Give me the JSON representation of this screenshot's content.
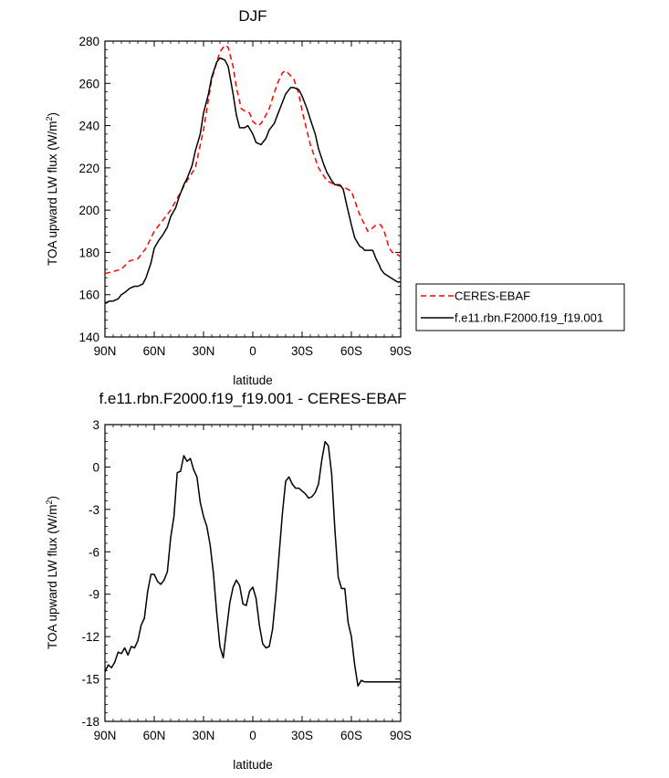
{
  "chart_data": [
    {
      "type": "line",
      "title": "DJF",
      "xlabel": "latitude",
      "ylabel": "TOA upward LW flux (W/m",
      "ylabel_sup": "2",
      "ylabel_close": ")",
      "xlim": [
        -90,
        90
      ],
      "ylim": [
        140,
        280
      ],
      "xticks": [
        -90,
        -60,
        -30,
        0,
        30,
        60,
        90
      ],
      "xtick_labels": [
        "90N",
        "60N",
        "30N",
        "0",
        "30S",
        "60S",
        "90S"
      ],
      "yticks": [
        140,
        160,
        180,
        200,
        220,
        240,
        260,
        280
      ],
      "ytick_labels": [
        "140",
        "160",
        "180",
        "200",
        "220",
        "240",
        "260",
        "280"
      ],
      "legend": [
        "CERES-EBAF",
        "f.e11.rbn.F2000.f19_f19.001"
      ],
      "series": [
        {
          "name": "CERES-EBAF",
          "color": "#ff0000",
          "dash": true,
          "x": [
            -90,
            -85,
            -80,
            -75,
            -70,
            -65,
            -60,
            -55,
            -50,
            -45,
            -40,
            -35,
            -30,
            -25,
            -20,
            -17,
            -15,
            -12,
            -10,
            -7,
            -5,
            -2,
            0,
            3,
            5,
            8,
            10,
            12,
            15,
            18,
            20,
            25,
            28,
            30,
            35,
            40,
            45,
            50,
            55,
            60,
            65,
            70,
            72,
            75,
            78,
            80,
            83,
            85,
            88,
            90
          ],
          "values": [
            170,
            171,
            172,
            176,
            177,
            182,
            190,
            195,
            200,
            207,
            214,
            220,
            238,
            262,
            275,
            278,
            277,
            268,
            258,
            248,
            247,
            246,
            242,
            240,
            241,
            245,
            248,
            253,
            260,
            265,
            266,
            262,
            255,
            247,
            231,
            220,
            214,
            212,
            211,
            209,
            198,
            190,
            191,
            193,
            193,
            190,
            182,
            180,
            179,
            178
          ]
        },
        {
          "name": "f.e11.rbn.F2000.f19_f19.001",
          "color": "#000000",
          "dash": false,
          "x": [
            -90,
            -87,
            -85,
            -82,
            -80,
            -78,
            -75,
            -72,
            -70,
            -67,
            -65,
            -62,
            -60,
            -57,
            -55,
            -52,
            -50,
            -47,
            -45,
            -42,
            -40,
            -37,
            -35,
            -32,
            -30,
            -27,
            -25,
            -22,
            -20,
            -17,
            -15,
            -12,
            -10,
            -8,
            -5,
            -3,
            0,
            2,
            5,
            8,
            10,
            13,
            15,
            18,
            20,
            23,
            25,
            28,
            30,
            33,
            35,
            38,
            40,
            43,
            45,
            48,
            50,
            53,
            55,
            57,
            60,
            62,
            65,
            67,
            68,
            70,
            72,
            73,
            75,
            77,
            78,
            80,
            82,
            84,
            86,
            88,
            90
          ],
          "values": [
            156,
            157,
            157,
            158,
            160,
            161,
            163,
            164,
            164,
            165,
            168,
            175,
            182,
            186,
            188,
            192,
            197,
            201,
            206,
            212,
            215,
            221,
            228,
            236,
            246,
            255,
            263,
            270,
            272,
            271,
            268,
            255,
            245,
            239,
            239,
            240,
            236,
            232,
            231,
            234,
            238,
            241,
            245,
            251,
            255,
            258,
            258,
            257,
            254,
            248,
            243,
            236,
            229,
            222,
            218,
            214,
            212,
            212,
            210,
            203,
            193,
            187,
            183,
            182,
            181,
            181,
            181,
            181,
            177,
            174,
            172,
            170,
            169,
            168,
            167,
            166,
            166
          ]
        }
      ]
    },
    {
      "type": "line",
      "title": "f.e11.rbn.F2000.f19_f19.001 - CERES-EBAF",
      "xlabel": "latitude",
      "ylabel": "TOA upward LW flux (W/m",
      "ylabel_sup": "2",
      "ylabel_close": ")",
      "xlim": [
        -90,
        90
      ],
      "ylim": [
        -18,
        3
      ],
      "xticks": [
        -90,
        -60,
        -30,
        0,
        30,
        60,
        90
      ],
      "xtick_labels": [
        "90N",
        "60N",
        "30N",
        "0",
        "30S",
        "60S",
        "90S"
      ],
      "yticks": [
        -18,
        -15,
        -12,
        -9,
        -6,
        -3,
        0,
        3
      ],
      "ytick_labels": [
        "-18",
        "-15",
        "-12",
        "-9",
        "-6",
        "-3",
        "0",
        "3"
      ],
      "series": [
        {
          "name": "f.e11.rbn.F2000.f19_f19.001 - CERES-EBAF",
          "color": "#000000",
          "dash": false,
          "x": [
            -90,
            -88,
            -86,
            -84,
            -82,
            -80,
            -78,
            -76,
            -74,
            -72,
            -70,
            -68,
            -66,
            -64,
            -62,
            -60,
            -58,
            -56,
            -54,
            -52,
            -50,
            -48,
            -46,
            -44,
            -42,
            -40,
            -38,
            -36,
            -34,
            -32,
            -30,
            -28,
            -26,
            -24,
            -22,
            -20,
            -18,
            -16,
            -14,
            -12,
            -10,
            -8,
            -6,
            -4,
            -2,
            0,
            2,
            4,
            6,
            8,
            10,
            12,
            14,
            16,
            18,
            20,
            22,
            24,
            26,
            28,
            30,
            32,
            34,
            36,
            38,
            40,
            42,
            44,
            46,
            48,
            50,
            52,
            54,
            56,
            58,
            60,
            62,
            64,
            66,
            68,
            70,
            72,
            74,
            76,
            78,
            80,
            82,
            84,
            86,
            88,
            90
          ],
          "values": [
            -14.5,
            -14.0,
            -14.2,
            -13.8,
            -13.1,
            -13.2,
            -12.8,
            -13.3,
            -12.7,
            -12.8,
            -12.3,
            -11.2,
            -10.7,
            -8.8,
            -7.6,
            -7.6,
            -8.1,
            -8.3,
            -8.0,
            -7.4,
            -5.0,
            -3.5,
            -0.4,
            -0.3,
            0.8,
            0.4,
            0.6,
            -0.2,
            -0.7,
            -2.5,
            -3.5,
            -4.2,
            -5.5,
            -7.5,
            -10.3,
            -12.7,
            -13.5,
            -11.5,
            -9.6,
            -8.5,
            -8.0,
            -8.4,
            -9.7,
            -9.8,
            -8.8,
            -8.5,
            -9.3,
            -11.2,
            -12.5,
            -12.8,
            -12.7,
            -11.5,
            -9.1,
            -6.2,
            -3.3,
            -1.0,
            -0.7,
            -1.2,
            -1.5,
            -1.5,
            -1.7,
            -1.9,
            -2.2,
            -2.1,
            -1.8,
            -1.2,
            0.5,
            1.8,
            1.5,
            -0.5,
            -4.5,
            -7.8,
            -8.6,
            -8.6,
            -11.0,
            -12.0,
            -14.0,
            -15.5,
            -15.1,
            -15.2,
            -15.2,
            -15.2,
            -15.2,
            -15.2,
            -15.2,
            -15.2,
            -15.2,
            -15.2,
            -15.2,
            -15.2,
            -15.2
          ]
        }
      ]
    }
  ]
}
